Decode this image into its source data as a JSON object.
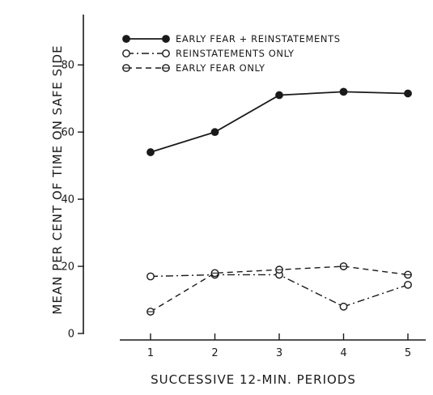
{
  "chart_data": {
    "type": "line",
    "xlabel": "SUCCESSIVE 12-MIN. PERIODS",
    "ylabel": "MEAN PER CENT OF TIME ON SAFE SIDE",
    "categories": [
      "1",
      "2",
      "3",
      "4",
      "5"
    ],
    "x": [
      1,
      2,
      3,
      4,
      5
    ],
    "xlim": [
      0.5,
      5.5
    ],
    "ylim": [
      0,
      95
    ],
    "yticks": [
      0,
      20,
      40,
      60,
      80
    ],
    "grid": false,
    "legend_position": "top-left",
    "series": [
      {
        "name": "EARLY FEAR + REINSTATEMENTS",
        "values": [
          54,
          60,
          71,
          72,
          71.5
        ],
        "marker": "filled-circle",
        "line_style": "solid",
        "color": "#1a1a1a"
      },
      {
        "name": "REINSTATEMENTS ONLY",
        "values": [
          17,
          17.5,
          17.5,
          8,
          14.5
        ],
        "marker": "open-circle",
        "line_style": "dash-dot",
        "color": "#1a1a1a"
      },
      {
        "name": "EARLY FEAR ONLY",
        "values": [
          6.5,
          18,
          19,
          20,
          17.5
        ],
        "marker": "crossed-circle",
        "line_style": "dashed",
        "color": "#1a1a1a"
      }
    ]
  }
}
